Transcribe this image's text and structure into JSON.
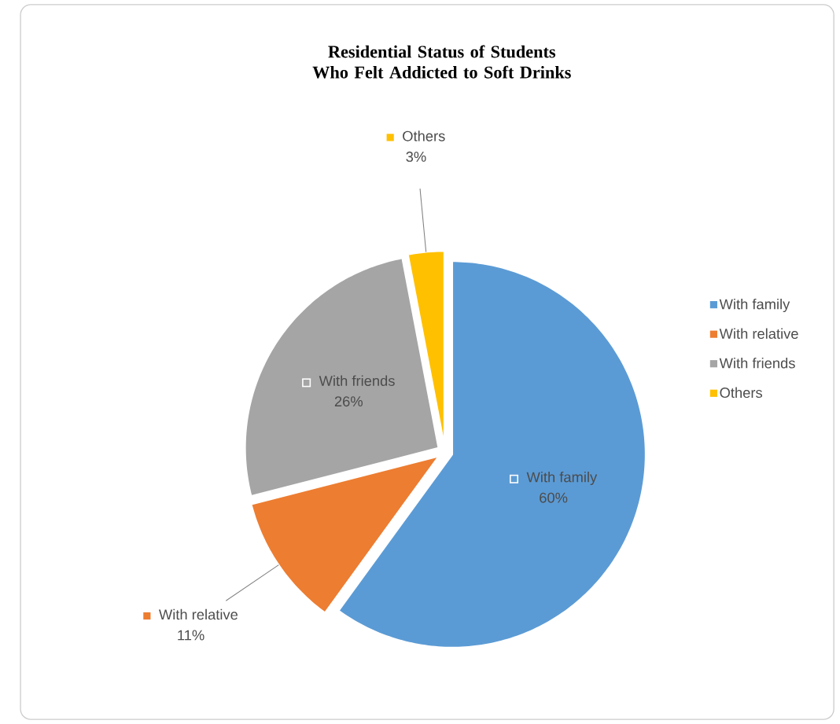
{
  "chart_data": {
    "type": "pie",
    "title": "Residential Status of Students Who Felt Addicted to Soft Drinks",
    "categories": [
      "With family",
      "With relative",
      "With friends",
      "Others"
    ],
    "values": [
      60,
      11,
      26,
      3
    ],
    "value_labels": [
      "60%",
      "11%",
      "26%",
      "3%"
    ],
    "colors": [
      "#5b9bd5",
      "#ed7d31",
      "#a5a5a5",
      "#ffc000"
    ],
    "legend": "right"
  }
}
